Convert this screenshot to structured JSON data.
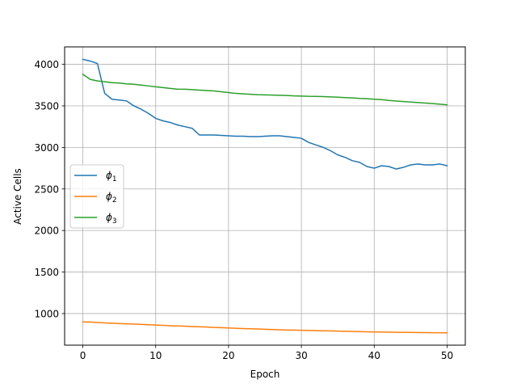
{
  "chart_data": {
    "type": "line",
    "title": "",
    "xlabel": "Epoch",
    "ylabel": "Active Cells",
    "xlim": [
      -2.5,
      52.5
    ],
    "ylim": [
      620,
      4210
    ],
    "xticks": [
      0,
      10,
      20,
      30,
      40,
      50
    ],
    "xtick_labels": [
      "0",
      "10",
      "20",
      "30",
      "40",
      "50"
    ],
    "yticks": [
      1000,
      1500,
      2000,
      2500,
      3000,
      3500,
      4000
    ],
    "ytick_labels": [
      "1000",
      "1500",
      "2000",
      "2500",
      "3000",
      "3500",
      "4000"
    ],
    "grid": true,
    "legend_position": "center-left",
    "x": [
      0,
      1,
      2,
      3,
      4,
      5,
      6,
      7,
      8,
      9,
      10,
      11,
      12,
      13,
      14,
      15,
      16,
      17,
      18,
      19,
      20,
      21,
      22,
      23,
      24,
      25,
      26,
      27,
      28,
      29,
      30,
      31,
      32,
      33,
      34,
      35,
      36,
      37,
      38,
      39,
      40,
      41,
      42,
      43,
      44,
      45,
      46,
      47,
      48,
      49,
      50
    ],
    "series": [
      {
        "name": "ϕ1",
        "label_base": "ϕ",
        "label_sub": "1",
        "color": "#1f77b4",
        "values": [
          4060,
          4040,
          4010,
          3650,
          3580,
          3570,
          3560,
          3500,
          3460,
          3410,
          3350,
          3320,
          3300,
          3270,
          3250,
          3230,
          3150,
          3150,
          3150,
          3145,
          3140,
          3135,
          3135,
          3130,
          3130,
          3135,
          3140,
          3140,
          3130,
          3120,
          3110,
          3060,
          3030,
          3000,
          2960,
          2910,
          2880,
          2840,
          2820,
          2770,
          2750,
          2780,
          2770,
          2740,
          2760,
          2790,
          2800,
          2790,
          2790,
          2800,
          2780
        ]
      },
      {
        "name": "ϕ2",
        "label_base": "ϕ",
        "label_sub": "2",
        "color": "#ff7f0e",
        "values": [
          900,
          898,
          892,
          888,
          884,
          880,
          877,
          874,
          870,
          866,
          862,
          858,
          854,
          851,
          848,
          844,
          841,
          838,
          834,
          830,
          827,
          823,
          820,
          817,
          814,
          811,
          808,
          805,
          803,
          801,
          799,
          797,
          795,
          793,
          791,
          789,
          787,
          785,
          783,
          781,
          779,
          778,
          777,
          775,
          774,
          773,
          772,
          771,
          770,
          769,
          768
        ]
      },
      {
        "name": "ϕ3",
        "label_base": "ϕ",
        "label_sub": "3",
        "color": "#2ca02c",
        "values": [
          3880,
          3820,
          3800,
          3790,
          3780,
          3775,
          3765,
          3760,
          3750,
          3740,
          3730,
          3720,
          3710,
          3700,
          3700,
          3695,
          3690,
          3685,
          3680,
          3670,
          3660,
          3650,
          3645,
          3640,
          3635,
          3632,
          3630,
          3628,
          3625,
          3620,
          3618,
          3615,
          3614,
          3612,
          3608,
          3604,
          3600,
          3596,
          3590,
          3586,
          3580,
          3575,
          3565,
          3558,
          3552,
          3546,
          3540,
          3534,
          3528,
          3520,
          3513
        ]
      }
    ]
  }
}
